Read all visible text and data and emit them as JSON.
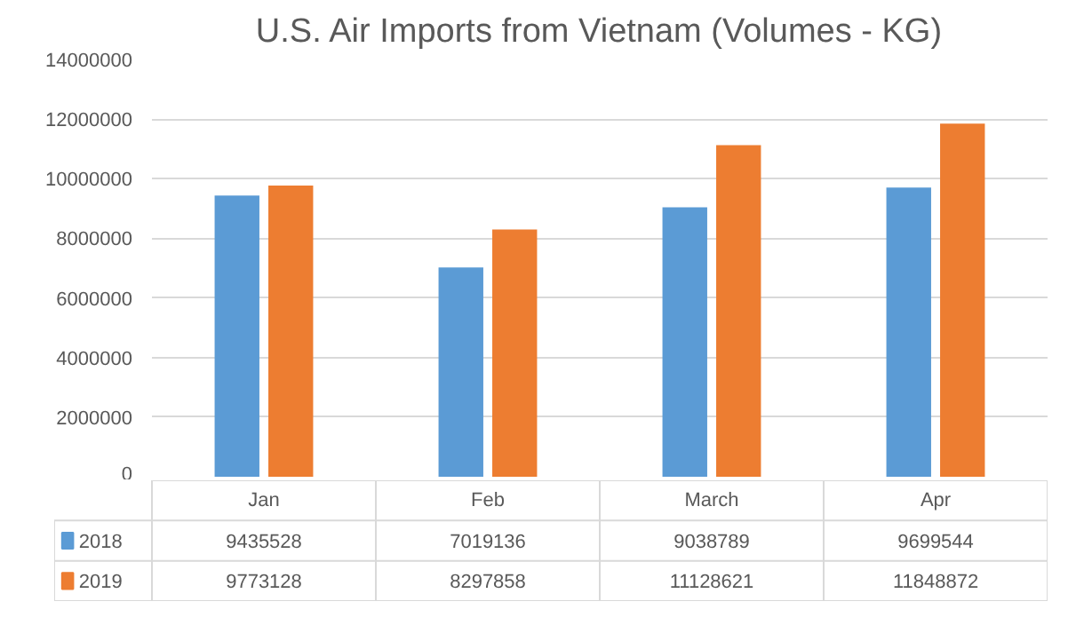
{
  "chart_data": {
    "type": "bar",
    "title": "U.S. Air Imports from Vietnam (Volumes - KG)",
    "categories": [
      "Jan",
      "Feb",
      "March",
      "Apr"
    ],
    "series": [
      {
        "name": "2018",
        "color": "#5b9bd5",
        "values": [
          9435528,
          7019136,
          9038789,
          9699544
        ],
        "value_labels": [
          "9435528",
          "7019136",
          "9038789",
          "9699544"
        ]
      },
      {
        "name": "2019",
        "color": "#ed7d31",
        "values": [
          9773128,
          8297858,
          11128621,
          11848872
        ],
        "value_labels": [
          "9773128",
          "8297858",
          "11128621",
          "11848872"
        ]
      }
    ],
    "ylim": [
      0,
      14000000
    ],
    "yticks": [
      0,
      2000000,
      4000000,
      6000000,
      8000000,
      10000000,
      12000000,
      14000000
    ],
    "grid": "y",
    "legend": "bottom",
    "data_labels": true
  }
}
